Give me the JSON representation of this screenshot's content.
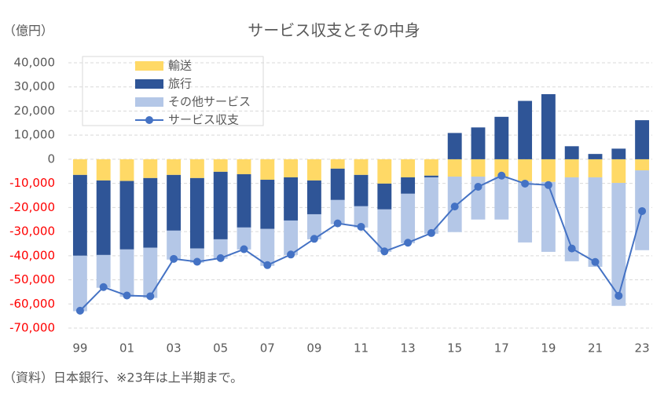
{
  "chart_data": {
    "type": "bar",
    "title": "サービス収支とその中身",
    "y_unit": "（億円）",
    "note": "（資料）日本銀行、※23年は上半期まで。",
    "categories": [
      "99",
      null,
      "01",
      null,
      "03",
      null,
      "05",
      null,
      "07",
      null,
      "09",
      null,
      "11",
      null,
      "13",
      null,
      "15",
      null,
      "17",
      null,
      "19",
      null,
      "21",
      null,
      "23"
    ],
    "series": [
      {
        "name": "輸送",
        "type": "bar",
        "color": "#ffd966",
        "values": [
          -6500,
          -8800,
          -9000,
          -7800,
          -6500,
          -7800,
          -5200,
          -6200,
          -8500,
          -7500,
          -8800,
          -3900,
          -6500,
          -10100,
          -7500,
          -6800,
          -7200,
          -7200,
          -7200,
          -9100,
          -9400,
          -7500,
          -7500,
          -9800,
          -4600
        ]
      },
      {
        "name": "旅行",
        "type": "bar",
        "color": "#2f5597",
        "values": [
          -33500,
          -30900,
          -28400,
          -28900,
          -23100,
          -29200,
          -28000,
          -22100,
          -20400,
          -17900,
          -14000,
          -13000,
          -13000,
          -10700,
          -6800,
          -700,
          10900,
          13200,
          17600,
          24200,
          27000,
          5400,
          2200,
          4400,
          16200
        ]
      },
      {
        "name": "その他サービス",
        "type": "bar",
        "color": "#b4c7e7",
        "values": [
          -23000,
          -13600,
          -19600,
          -20800,
          -12000,
          -5900,
          -8100,
          -9100,
          -15300,
          -14300,
          -10400,
          -10000,
          -8800,
          -17600,
          -20500,
          -23400,
          -23000,
          -17800,
          -17800,
          -25400,
          -29000,
          -34800,
          -37100,
          -51000,
          -33100
        ]
      },
      {
        "name": "サービス収支",
        "type": "line",
        "color": "#4472c4",
        "values": [
          -62800,
          -53000,
          -56500,
          -56800,
          -41300,
          -42500,
          -41000,
          -37300,
          -43900,
          -39500,
          -33000,
          -26600,
          -28000,
          -38200,
          -34600,
          -30600,
          -19600,
          -11400,
          -6800,
          -10100,
          -10700,
          -37000,
          -42600,
          -56600,
          -21500
        ]
      }
    ],
    "ylim": [
      -70000,
      40000
    ],
    "yticks": [
      {
        "value": 40000,
        "label": "40,000"
      },
      {
        "value": 30000,
        "label": "30,000"
      },
      {
        "value": 20000,
        "label": "20,000"
      },
      {
        "value": 10000,
        "label": "10,000"
      },
      0,
      {
        "value": -10000,
        "label": "-10,000"
      },
      {
        "value": -20000,
        "label": "-20,000"
      },
      {
        "value": -30000,
        "label": "-30,000"
      },
      {
        "value": -40000,
        "label": "-40,000"
      },
      {
        "value": -50000,
        "label": "-50,000"
      },
      {
        "value": -60000,
        "label": "-60,000"
      },
      {
        "value": -70000,
        "label": "-70,000"
      }
    ],
    "grid": true,
    "negative_tick_color": "#ff0000",
    "legend": "top-left"
  }
}
